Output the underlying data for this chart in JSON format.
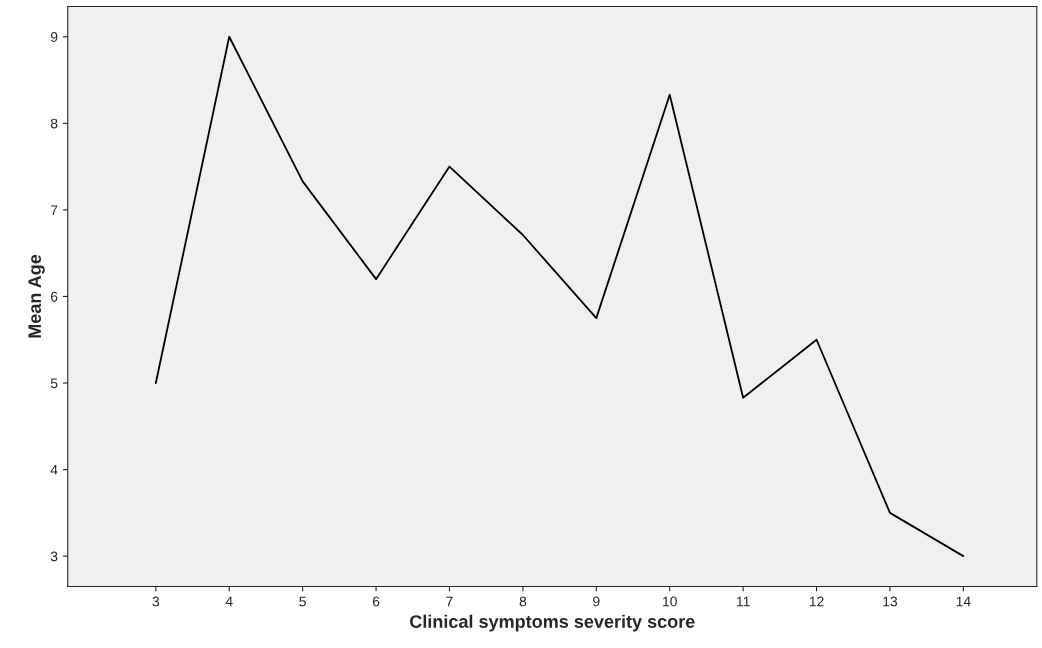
{
  "chart_data": {
    "type": "line",
    "xlabel": "Clinical symptoms severity score",
    "ylabel": "Mean Age",
    "x": [
      3,
      4,
      5,
      6,
      7,
      8,
      9,
      10,
      11,
      12,
      13,
      14
    ],
    "series": [
      {
        "color": "#000000",
        "values": [
          5.0,
          9.0,
          7.33,
          6.2,
          7.5,
          6.71,
          5.75,
          8.33,
          4.83,
          5.5,
          3.5,
          3.0
        ]
      }
    ],
    "xlim": [
      1.8,
      15
    ],
    "xticks": [
      3,
      4,
      5,
      6,
      7,
      8,
      9,
      10,
      11,
      12,
      13,
      14
    ],
    "ylim": [
      2.65,
      9.35
    ],
    "yticks": [
      3,
      4,
      5,
      6,
      7,
      8,
      9
    ],
    "grid": false,
    "legend": false,
    "marker": "none",
    "line_style": "solid"
  }
}
